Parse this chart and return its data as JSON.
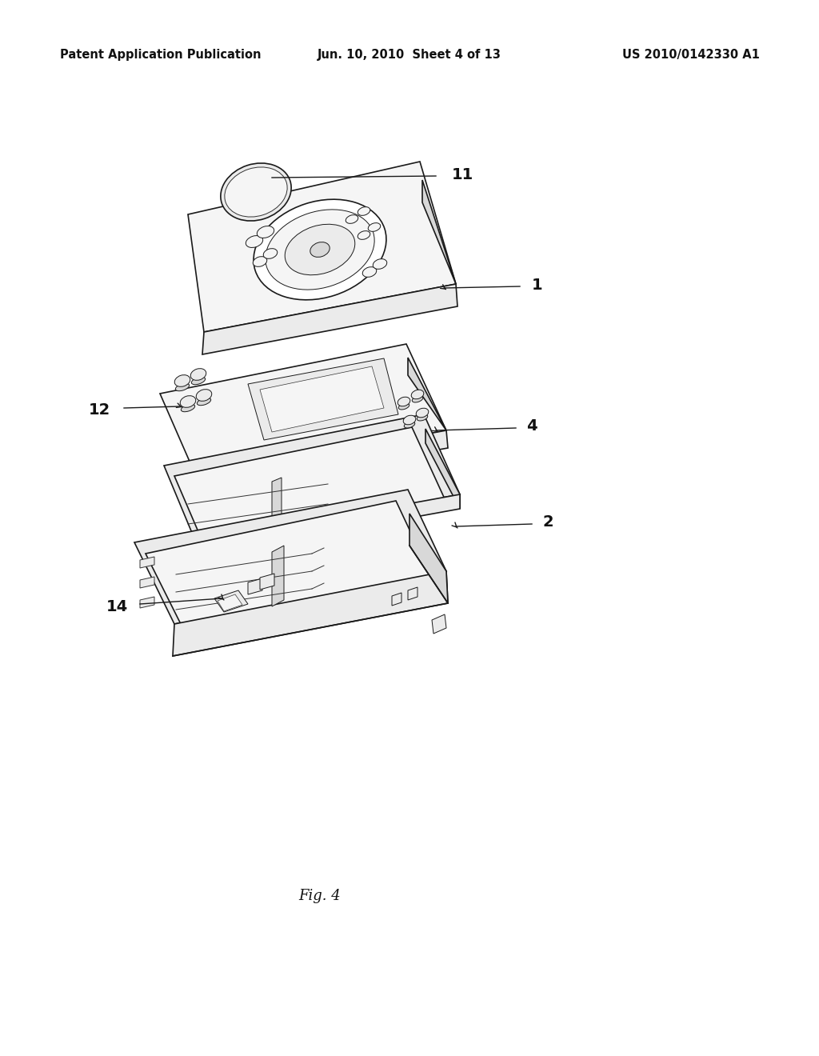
{
  "background_color": "#ffffff",
  "header_left": "Patent Application Publication",
  "header_center": "Jun. 10, 2010  Sheet 4 of 13",
  "header_right": "US 2010/0142330 A1",
  "fig_label": "Fig. 4",
  "header_fontsize": 10.5,
  "fig_label_fontsize": 13,
  "lw_main": 1.2,
  "lw_detail": 0.7,
  "ec_main": "#1a1a1a",
  "ec_detail": "#333333",
  "face_white": "#ffffff",
  "face_light": "#f5f5f5",
  "face_mid": "#ebebeb",
  "face_dark": "#d8d8d8"
}
